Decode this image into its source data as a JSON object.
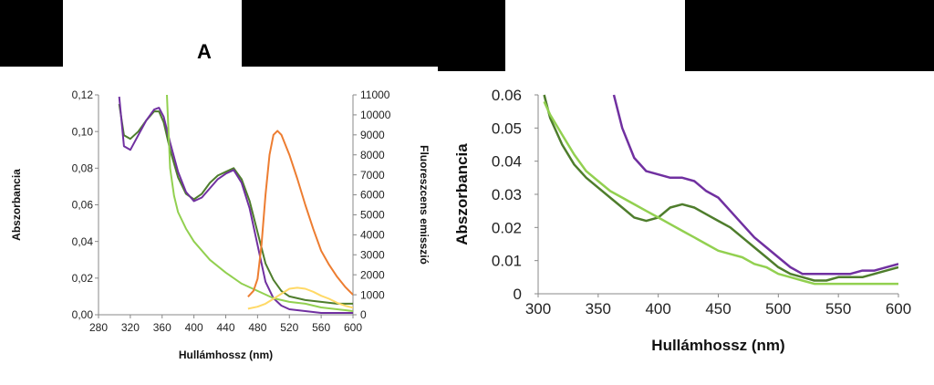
{
  "panels": [
    {
      "label": "A",
      "chart_data": {
        "type": "line",
        "xlabel": "Hullámhossz (nm)",
        "ylabel": "Abszorbancia",
        "y2label": "Fluoreszcens emisszió",
        "xlim": [
          280,
          600
        ],
        "ylim": [
          0,
          0.12
        ],
        "y2lim": [
          0,
          11000
        ],
        "x_ticks": [
          "280",
          "320",
          "360",
          "400",
          "440",
          "480",
          "520",
          "560",
          "600"
        ],
        "y_ticks": [
          "0,00",
          "0,02",
          "0,04",
          "0,06",
          "0,08",
          "0,10",
          "0,12"
        ],
        "y2_ticks": [
          "0",
          "1000",
          "2000",
          "3000",
          "4000",
          "5000",
          "6000",
          "7000",
          "8000",
          "9000",
          "10000",
          "11000"
        ],
        "grid": false,
        "series": [
          {
            "color": "#4e7d2c",
            "axis": "left",
            "x": [
              306,
              312,
              320,
              330,
              340,
              350,
              356,
              362,
              370,
              380,
              390,
              400,
              410,
              420,
              430,
              440,
              450,
              460,
              470,
              480,
              490,
              500,
              510,
              520,
              540,
              560,
              580,
              600
            ],
            "y": [
              0.115,
              0.098,
              0.096,
              0.1,
              0.106,
              0.111,
              0.111,
              0.105,
              0.09,
              0.075,
              0.066,
              0.063,
              0.066,
              0.072,
              0.076,
              0.078,
              0.08,
              0.074,
              0.062,
              0.045,
              0.028,
              0.019,
              0.013,
              0.01,
              0.008,
              0.007,
              0.006,
              0.006
            ]
          },
          {
            "color": "#7030a0",
            "axis": "left",
            "x": [
              306,
              312,
              320,
              330,
              340,
              350,
              356,
              362,
              370,
              380,
              390,
              400,
              410,
              420,
              430,
              440,
              450,
              460,
              470,
              480,
              490,
              500,
              510,
              520,
              540,
              560,
              580,
              600
            ],
            "y": [
              0.119,
              0.092,
              0.09,
              0.098,
              0.106,
              0.112,
              0.113,
              0.108,
              0.094,
              0.078,
              0.067,
              0.062,
              0.064,
              0.069,
              0.074,
              0.077,
              0.079,
              0.072,
              0.058,
              0.038,
              0.018,
              0.009,
              0.005,
              0.003,
              0.002,
              0.001,
              0.001,
              0.001
            ]
          },
          {
            "color": "#92d050",
            "axis": "left",
            "x": [
              366,
              370,
              375,
              380,
              390,
              400,
              420,
              440,
              460,
              480,
              500,
              520,
              540,
              560,
              580,
              600
            ],
            "y": [
              0.12,
              0.08,
              0.065,
              0.056,
              0.047,
              0.04,
              0.03,
              0.023,
              0.017,
              0.013,
              0.009,
              0.007,
              0.006,
              0.004,
              0.003,
              0.002
            ]
          },
          {
            "color": "#ed7d31",
            "axis": "right",
            "x": [
              468,
              475,
              480,
              485,
              490,
              495,
              500,
              505,
              510,
              515,
              520,
              530,
              540,
              550,
              560,
              570,
              580,
              590,
              600
            ],
            "y": [
              900,
              1200,
              1800,
              3500,
              6000,
              8000,
              9000,
              9200,
              9000,
              8500,
              8000,
              6800,
              5500,
              4300,
              3200,
              2500,
              1900,
              1400,
              1000
            ]
          },
          {
            "color": "#ffd966",
            "axis": "right",
            "x": [
              468,
              480,
              490,
              500,
              510,
              520,
              530,
              540,
              550,
              560,
              570,
              580,
              590,
              600
            ],
            "y": [
              300,
              400,
              550,
              800,
              1050,
              1300,
              1350,
              1300,
              1150,
              950,
              800,
              600,
              450,
              350
            ]
          }
        ]
      }
    },
    {
      "label": "",
      "chart_data": {
        "type": "line",
        "xlabel": "Hullámhossz (nm)",
        "ylabel": "Abszorbancia",
        "xlim": [
          300,
          600
        ],
        "ylim": [
          0,
          0.06
        ],
        "x_ticks": [
          "300",
          "350",
          "400",
          "450",
          "500",
          "550",
          "600"
        ],
        "y_ticks": [
          "0",
          "0.01",
          "0.02",
          "0.03",
          "0.04",
          "0.05",
          "0.06"
        ],
        "grid": false,
        "series": [
          {
            "color": "#4e7d2c",
            "x": [
              305,
              310,
              320,
              330,
              340,
              350,
              360,
              370,
              380,
              390,
              400,
              410,
              420,
              430,
              440,
              450,
              460,
              470,
              480,
              490,
              500,
              510,
              520,
              530,
              540,
              550,
              560,
              570,
              580,
              590,
              600
            ],
            "y": [
              0.06,
              0.053,
              0.045,
              0.039,
              0.035,
              0.032,
              0.029,
              0.026,
              0.023,
              0.022,
              0.023,
              0.026,
              0.027,
              0.026,
              0.024,
              0.022,
              0.02,
              0.017,
              0.014,
              0.011,
              0.008,
              0.006,
              0.005,
              0.004,
              0.004,
              0.005,
              0.005,
              0.005,
              0.006,
              0.007,
              0.008
            ]
          },
          {
            "color": "#92d050",
            "x": [
              305,
              310,
              320,
              330,
              340,
              350,
              360,
              370,
              380,
              390,
              400,
              410,
              420,
              430,
              440,
              450,
              460,
              470,
              480,
              490,
              500,
              510,
              520,
              530,
              540,
              550,
              560,
              570,
              580,
              590,
              600
            ],
            "y": [
              0.058,
              0.054,
              0.048,
              0.042,
              0.037,
              0.034,
              0.031,
              0.029,
              0.027,
              0.025,
              0.023,
              0.021,
              0.019,
              0.017,
              0.015,
              0.013,
              0.012,
              0.011,
              0.009,
              0.008,
              0.006,
              0.005,
              0.004,
              0.003,
              0.003,
              0.003,
              0.003,
              0.003,
              0.003,
              0.003,
              0.003
            ]
          },
          {
            "color": "#7030a0",
            "x": [
              363,
              370,
              380,
              390,
              400,
              410,
              420,
              430,
              440,
              450,
              460,
              470,
              480,
              490,
              500,
              510,
              520,
              530,
              540,
              550,
              560,
              570,
              580,
              590,
              600
            ],
            "y": [
              0.06,
              0.05,
              0.041,
              0.037,
              0.036,
              0.035,
              0.035,
              0.034,
              0.031,
              0.029,
              0.025,
              0.021,
              0.017,
              0.014,
              0.011,
              0.008,
              0.006,
              0.006,
              0.006,
              0.006,
              0.006,
              0.007,
              0.007,
              0.008,
              0.009
            ]
          }
        ]
      }
    }
  ]
}
